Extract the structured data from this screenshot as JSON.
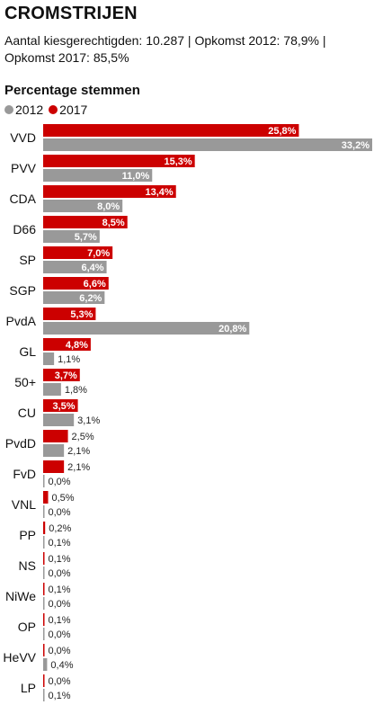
{
  "header": {
    "title": "CROMSTRIJEN",
    "subtitle": "Aantal kiesgerechtigden: 10.287 | Opkomst 2012: 78,9% | Opkomst 2017: 85,5%"
  },
  "colors": {
    "y2012": "#999999",
    "y2017": "#cc0000"
  },
  "chart_data": {
    "type": "bar",
    "title": "Percentage stemmen",
    "categories": [
      "VVD",
      "PVV",
      "CDA",
      "D66",
      "SP",
      "SGP",
      "PvdA",
      "GL",
      "50+",
      "CU",
      "PvdD",
      "FvD",
      "VNL",
      "PP",
      "NS",
      "NiWe",
      "OP",
      "HeVV",
      "LP"
    ],
    "series": [
      {
        "name": "2017",
        "values": [
          25.8,
          15.3,
          13.4,
          8.5,
          7.0,
          6.6,
          5.3,
          4.8,
          3.7,
          3.5,
          2.5,
          2.1,
          0.5,
          0.2,
          0.1,
          0.1,
          0.1,
          0.0,
          0.0
        ],
        "labels": [
          "25,8%",
          "15,3%",
          "13,4%",
          "8,5%",
          "7,0%",
          "6,6%",
          "5,3%",
          "4,8%",
          "3,7%",
          "3,5%",
          "2,5%",
          "2,1%",
          "0,5%",
          "0,2%",
          "0,1%",
          "0,1%",
          "0,1%",
          "0,0%",
          "0,0%"
        ]
      },
      {
        "name": "2012",
        "values": [
          33.2,
          11.0,
          8.0,
          5.7,
          6.4,
          6.2,
          20.8,
          1.1,
          1.8,
          3.1,
          2.1,
          0.0,
          0.0,
          0.1,
          0.0,
          0.0,
          0.0,
          0.4,
          0.1
        ],
        "labels": [
          "33,2%",
          "11,0%",
          "8,0%",
          "5,7%",
          "6,4%",
          "6,2%",
          "20,8%",
          "1,1%",
          "1,8%",
          "3,1%",
          "2,1%",
          "0,0%",
          "0,0%",
          "0,1%",
          "0,0%",
          "0,0%",
          "0,0%",
          "0,4%",
          "0,1%"
        ]
      }
    ],
    "legend_position": "top-left",
    "xlim": [
      0,
      33.2
    ]
  }
}
